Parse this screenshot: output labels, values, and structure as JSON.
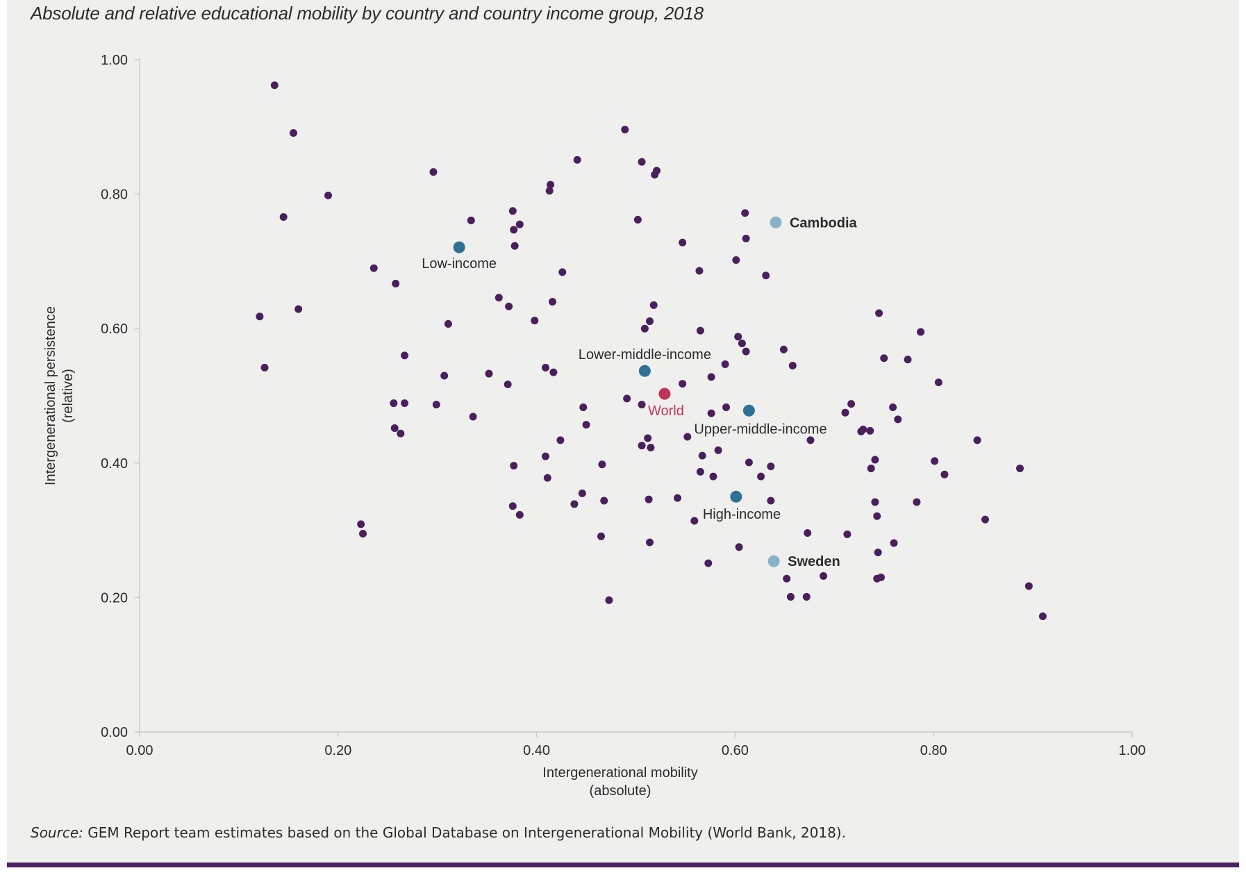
{
  "title": "Absolute and relative educational mobility by country and country income group, 2018",
  "source": {
    "prefix": "Source:",
    "text": "GEM Report team estimates based on the Global Database on Intergenerational Mobility (World Bank, 2018)."
  },
  "colors": {
    "background": "#eff0ee",
    "country_point": "#4a1f5c",
    "group_point": "#2e7194",
    "world_point": "#c0345a",
    "highlight_point": "#89b2ca",
    "axis": "#c9c9c9",
    "text": "#2b2b2b",
    "bottom_rule": "#4a2265"
  },
  "chart_data": {
    "type": "scatter",
    "xlabel": [
      "Intergenerational mobility",
      "(absolute)"
    ],
    "ylabel": [
      "Intergenerational persistence",
      "(relative)"
    ],
    "xlim": [
      0,
      1
    ],
    "ylim": [
      0,
      1
    ],
    "xticks": [
      "0.00",
      "0.20",
      "0.40",
      "0.60",
      "0.80",
      "1.00"
    ],
    "yticks": [
      "0.00",
      "0.20",
      "0.40",
      "0.60",
      "0.80",
      "1.00"
    ],
    "grid": false,
    "legend": "none",
    "countries": [
      [
        0.136,
        0.962
      ],
      [
        0.155,
        0.891
      ],
      [
        0.19,
        0.798
      ],
      [
        0.145,
        0.766
      ],
      [
        0.16,
        0.629
      ],
      [
        0.121,
        0.618
      ],
      [
        0.126,
        0.542
      ],
      [
        0.236,
        0.69
      ],
      [
        0.258,
        0.667
      ],
      [
        0.267,
        0.56
      ],
      [
        0.256,
        0.489
      ],
      [
        0.267,
        0.489
      ],
      [
        0.257,
        0.452
      ],
      [
        0.263,
        0.444
      ],
      [
        0.223,
        0.309
      ],
      [
        0.225,
        0.295
      ],
      [
        0.296,
        0.833
      ],
      [
        0.334,
        0.761
      ],
      [
        0.311,
        0.607
      ],
      [
        0.307,
        0.53
      ],
      [
        0.299,
        0.487
      ],
      [
        0.336,
        0.469
      ],
      [
        0.352,
        0.533
      ],
      [
        0.362,
        0.646
      ],
      [
        0.372,
        0.633
      ],
      [
        0.376,
        0.775
      ],
      [
        0.377,
        0.747
      ],
      [
        0.383,
        0.755
      ],
      [
        0.378,
        0.723
      ],
      [
        0.371,
        0.517
      ],
      [
        0.377,
        0.396
      ],
      [
        0.376,
        0.336
      ],
      [
        0.383,
        0.323
      ],
      [
        0.398,
        0.612
      ],
      [
        0.414,
        0.814
      ],
      [
        0.413,
        0.805
      ],
      [
        0.426,
        0.684
      ],
      [
        0.416,
        0.64
      ],
      [
        0.409,
        0.542
      ],
      [
        0.417,
        0.535
      ],
      [
        0.424,
        0.434
      ],
      [
        0.409,
        0.41
      ],
      [
        0.411,
        0.378
      ],
      [
        0.441,
        0.851
      ],
      [
        0.447,
        0.483
      ],
      [
        0.45,
        0.457
      ],
      [
        0.438,
        0.339
      ],
      [
        0.446,
        0.355
      ],
      [
        0.466,
        0.398
      ],
      [
        0.468,
        0.344
      ],
      [
        0.465,
        0.291
      ],
      [
        0.473,
        0.196
      ],
      [
        0.489,
        0.896
      ],
      [
        0.506,
        0.848
      ],
      [
        0.521,
        0.835
      ],
      [
        0.519,
        0.829
      ],
      [
        0.502,
        0.762
      ],
      [
        0.518,
        0.635
      ],
      [
        0.514,
        0.611
      ],
      [
        0.509,
        0.6
      ],
      [
        0.491,
        0.496
      ],
      [
        0.506,
        0.487
      ],
      [
        0.512,
        0.437
      ],
      [
        0.506,
        0.426
      ],
      [
        0.515,
        0.423
      ],
      [
        0.513,
        0.346
      ],
      [
        0.514,
        0.282
      ],
      [
        0.547,
        0.728
      ],
      [
        0.564,
        0.686
      ],
      [
        0.565,
        0.597
      ],
      [
        0.547,
        0.518
      ],
      [
        0.552,
        0.439
      ],
      [
        0.542,
        0.348
      ],
      [
        0.559,
        0.314
      ],
      [
        0.576,
        0.528
      ],
      [
        0.576,
        0.474
      ],
      [
        0.567,
        0.411
      ],
      [
        0.565,
        0.387
      ],
      [
        0.578,
        0.38
      ],
      [
        0.573,
        0.251
      ],
      [
        0.59,
        0.547
      ],
      [
        0.591,
        0.483
      ],
      [
        0.583,
        0.419
      ],
      [
        0.61,
        0.772
      ],
      [
        0.611,
        0.734
      ],
      [
        0.601,
        0.702
      ],
      [
        0.603,
        0.588
      ],
      [
        0.607,
        0.578
      ],
      [
        0.611,
        0.566
      ],
      [
        0.614,
        0.401
      ],
      [
        0.604,
        0.275
      ],
      [
        0.631,
        0.679
      ],
      [
        0.626,
        0.38
      ],
      [
        0.636,
        0.395
      ],
      [
        0.636,
        0.344
      ],
      [
        0.649,
        0.569
      ],
      [
        0.658,
        0.545
      ],
      [
        0.652,
        0.228
      ],
      [
        0.656,
        0.201
      ],
      [
        0.676,
        0.434
      ],
      [
        0.673,
        0.296
      ],
      [
        0.672,
        0.201
      ],
      [
        0.689,
        0.232
      ],
      [
        0.711,
        0.475
      ],
      [
        0.717,
        0.488
      ],
      [
        0.713,
        0.294
      ],
      [
        0.727,
        0.447
      ],
      [
        0.729,
        0.45
      ],
      [
        0.736,
        0.448
      ],
      [
        0.741,
        0.405
      ],
      [
        0.737,
        0.392
      ],
      [
        0.741,
        0.342
      ],
      [
        0.743,
        0.321
      ],
      [
        0.745,
        0.623
      ],
      [
        0.75,
        0.556
      ],
      [
        0.744,
        0.267
      ],
      [
        0.743,
        0.228
      ],
      [
        0.747,
        0.23
      ],
      [
        0.759,
        0.483
      ],
      [
        0.764,
        0.465
      ],
      [
        0.76,
        0.281
      ],
      [
        0.774,
        0.554
      ],
      [
        0.787,
        0.595
      ],
      [
        0.783,
        0.342
      ],
      [
        0.805,
        0.52
      ],
      [
        0.801,
        0.403
      ],
      [
        0.811,
        0.383
      ],
      [
        0.844,
        0.434
      ],
      [
        0.852,
        0.316
      ],
      [
        0.887,
        0.392
      ],
      [
        0.896,
        0.217
      ],
      [
        0.91,
        0.172
      ]
    ],
    "income_groups": [
      {
        "label": "Low-income",
        "x": 0.322,
        "y": 0.721
      },
      {
        "label": "Lower-middle-income",
        "x": 0.509,
        "y": 0.537
      },
      {
        "label": "Upper-middle-income",
        "x": 0.614,
        "y": 0.478
      },
      {
        "label": "High-income",
        "x": 0.601,
        "y": 0.35
      }
    ],
    "world": {
      "label": "World",
      "x": 0.529,
      "y": 0.503
    },
    "highlighted": [
      {
        "label": "Cambodia",
        "x": 0.641,
        "y": 0.758
      },
      {
        "label": "Sweden",
        "x": 0.639,
        "y": 0.254
      }
    ]
  }
}
